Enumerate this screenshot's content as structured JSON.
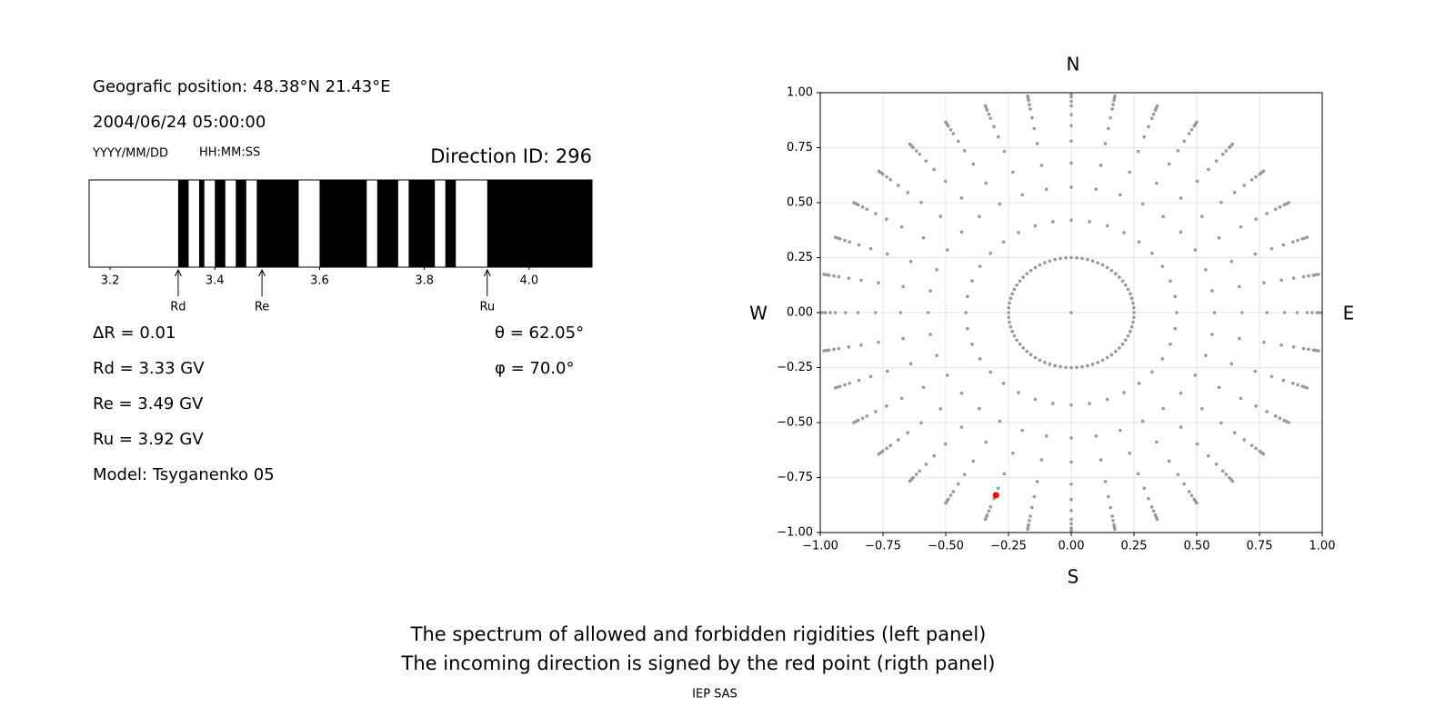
{
  "info": {
    "position": "Geografic position: 48.38°N 21.43°E",
    "datetime": "2004/06/24 05:00:00",
    "date_format": "YYYY/MM/DD",
    "time_format": "HH:MM:SS",
    "direction_id": "Direction ID: 296",
    "delta_r": "ΔR = 0.01",
    "rd": "Rd = 3.33 GV",
    "re": "Re = 3.49 GV",
    "ru": "Ru = 3.92 GV",
    "model": "Model: Tsyganenko 05",
    "theta": "θ = 62.05°",
    "phi": "φ = 70.0°"
  },
  "chart_data": [
    {
      "type": "spectrum",
      "xlim": [
        3.16,
        4.12
      ],
      "xticks": [
        3.2,
        3.4,
        3.6,
        3.8,
        {
          "value": 4,
          "label": "4.0"
        }
      ],
      "color": "#000000",
      "forbidden": [
        [
          3.33,
          3.35
        ],
        [
          3.37,
          3.38
        ],
        [
          3.4,
          3.42
        ],
        [
          3.44,
          3.46
        ],
        [
          3.48,
          3.56
        ],
        [
          3.6,
          3.69
        ],
        [
          3.71,
          3.75
        ],
        [
          3.77,
          3.82
        ],
        [
          3.84,
          3.86
        ],
        [
          3.92,
          4.12
        ]
      ],
      "markers": [
        {
          "label": "Rd",
          "value": 3.33
        },
        {
          "label": "Re",
          "value": 3.49
        },
        {
          "label": "Ru",
          "value": 3.92
        }
      ]
    },
    {
      "type": "scatter",
      "xlim": [
        -1,
        1
      ],
      "ylim": [
        -1,
        1
      ],
      "grid": true,
      "xticks": [
        {
          "value": -1,
          "label": "−1.00"
        },
        {
          "value": -0.75,
          "label": "−0.75"
        },
        {
          "value": -0.5,
          "label": "−0.50"
        },
        {
          "value": -0.25,
          "label": "−0.25"
        },
        {
          "value": 0,
          "label": "0.00"
        },
        {
          "value": 0.25,
          "label": "0.25"
        },
        {
          "value": 0.5,
          "label": "0.50"
        },
        {
          "value": 0.75,
          "label": "0.75"
        },
        {
          "value": 1,
          "label": "1.00"
        }
      ],
      "yticks": [
        {
          "value": -1,
          "label": "−1.00"
        },
        {
          "value": -0.75,
          "label": "−0.75"
        },
        {
          "value": -0.5,
          "label": "−0.50"
        },
        {
          "value": -0.25,
          "label": "−0.25"
        },
        {
          "value": 0,
          "label": "0.00"
        },
        {
          "value": 0.25,
          "label": "0.25"
        },
        {
          "value": 0.5,
          "label": "0.50"
        },
        {
          "value": 0.75,
          "label": "0.75"
        },
        {
          "value": 1,
          "label": "1.00"
        }
      ],
      "compass": {
        "n": "N",
        "s": "S",
        "e": "E",
        "w": "W"
      },
      "series": [
        {
          "color": "#999999",
          "r": [
            0
          ],
          "azimuths": [
            0
          ]
        },
        {
          "color": "#999999",
          "r": [
            0.25
          ],
          "azimuths": [
            0,
            5,
            10,
            15,
            20,
            25,
            30,
            35,
            40,
            45,
            50,
            55,
            60,
            65,
            70,
            75,
            80,
            85,
            90,
            95,
            100,
            105,
            110,
            115,
            120,
            125,
            130,
            135,
            140,
            145,
            150,
            155,
            160,
            165,
            170,
            175,
            180,
            185,
            190,
            195,
            200,
            205,
            210,
            215,
            220,
            225,
            230,
            235,
            240,
            245,
            250,
            255,
            260,
            265,
            270,
            275,
            280,
            285,
            290,
            295,
            300,
            305,
            310,
            315,
            320,
            325,
            330,
            335,
            340,
            345,
            350,
            355
          ]
        },
        {
          "color": "#999999",
          "r": [
            0.42,
            0.57,
            0.68,
            0.78,
            0.85,
            0.9,
            0.94,
            0.96,
            0.98,
            0.99,
            1.0
          ],
          "azimuths": [
            0,
            10,
            20,
            30,
            40,
            50,
            60,
            70,
            80,
            90,
            100,
            110,
            120,
            130,
            140,
            150,
            160,
            170,
            180,
            190,
            200,
            210,
            220,
            230,
            240,
            250,
            260,
            270,
            280,
            290,
            300,
            310,
            320,
            330,
            340,
            350
          ]
        },
        {
          "color": "#ff0000",
          "x": [
            -0.3
          ],
          "y": [
            -0.83
          ]
        }
      ]
    }
  ],
  "caption": [
    "The spectrum of allowed and forbidden rigidities (left panel)",
    "The incoming direction is signed by the red point (rigth panel)"
  ],
  "footer": "IEP SAS"
}
